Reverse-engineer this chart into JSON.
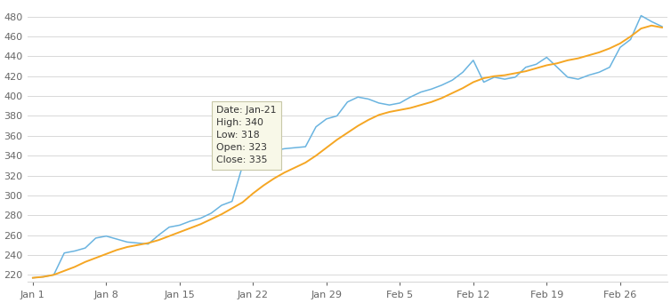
{
  "background_color": "#ffffff",
  "grid_color": "#d8d8d8",
  "ylim": [
    213,
    493
  ],
  "yticks": [
    220,
    240,
    260,
    280,
    300,
    320,
    340,
    360,
    380,
    400,
    420,
    440,
    460,
    480
  ],
  "x_labels": [
    "Jan 1",
    "Jan 8",
    "Jan 15",
    "Jan 22",
    "Jan 29",
    "Feb 5",
    "Feb 12",
    "Feb 19",
    "Feb 26"
  ],
  "x_tick_indices": [
    0,
    7,
    14,
    21,
    28,
    35,
    42,
    49,
    56
  ],
  "price_line_color": "#6ab4e0",
  "ma_line_color": "#f5a623",
  "tooltip": {
    "date": "Jan-21",
    "high": 340,
    "low": 318,
    "open": 323,
    "close": 335
  },
  "price_data": [
    217,
    218,
    220,
    242,
    244,
    247,
    257,
    259,
    256,
    253,
    252,
    251,
    260,
    268,
    270,
    274,
    277,
    282,
    290,
    294,
    330,
    326,
    328,
    345,
    347,
    348,
    349,
    369,
    377,
    380,
    394,
    399,
    397,
    393,
    391,
    393,
    399,
    404,
    407,
    411,
    416,
    424,
    436,
    414,
    419,
    417,
    419,
    429,
    432,
    439,
    429,
    419,
    417,
    421,
    424,
    429,
    449,
    457,
    481,
    475,
    470
  ],
  "ma_data": [
    217,
    218,
    220,
    224,
    228,
    233,
    237,
    241,
    245,
    248,
    250,
    252,
    255,
    259,
    263,
    267,
    271,
    276,
    281,
    287,
    293,
    302,
    310,
    317,
    323,
    328,
    333,
    340,
    348,
    356,
    363,
    370,
    376,
    381,
    384,
    386,
    388,
    391,
    394,
    398,
    403,
    408,
    414,
    418,
    420,
    421,
    423,
    425,
    428,
    431,
    433,
    436,
    438,
    441,
    444,
    448,
    453,
    460,
    468,
    471,
    469
  ]
}
